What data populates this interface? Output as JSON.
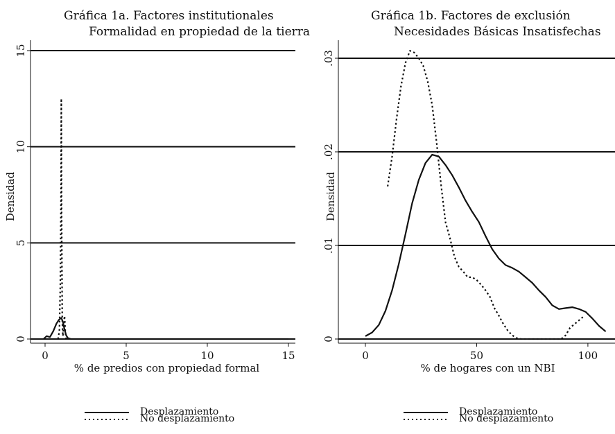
{
  "chart_data": [
    {
      "type": "line",
      "title": "Gráfica 1a. Factores institutionales",
      "subtitle": "Formalidad en propiedad de la tierra",
      "xlabel": "% de predios con propiedad formal",
      "ylabel": "Densidad",
      "xlim": [
        0,
        15
      ],
      "ylim": [
        0,
        15
      ],
      "xticks": [
        0,
        5,
        10,
        15
      ],
      "xtick_labels": [
        "0",
        "5",
        "10",
        "15"
      ],
      "yticks": [
        0,
        5,
        10,
        15
      ],
      "ytick_labels": [
        "0",
        "5",
        "10",
        "15"
      ],
      "grid": "horizontal",
      "legend_position": "bottom",
      "series": [
        {
          "name": "Desplazamiento",
          "style": "solid",
          "color": "#111111",
          "x": [
            -0.1,
            0.1,
            0.3,
            0.5,
            0.7,
            0.85,
            1.0,
            1.1,
            1.2,
            1.3,
            1.4,
            1.6,
            2,
            4,
            8,
            12,
            15
          ],
          "y": [
            0,
            0.15,
            0.1,
            0.4,
            0.8,
            1.0,
            1.1,
            0.9,
            0.5,
            0.2,
            0.05,
            0,
            0,
            0,
            0,
            0,
            0
          ]
        },
        {
          "name": "No desplazamiento",
          "style": "dotted",
          "color": "#111111",
          "x": [
            0.8,
            0.88,
            0.94,
            0.98,
            1.0,
            1.02,
            1.06,
            1.1,
            1.15,
            1.2,
            1.25,
            1.3
          ],
          "y": [
            0,
            0.4,
            2.8,
            7.0,
            12.5,
            6.5,
            1.0,
            0.15,
            0.8,
            1.2,
            0.3,
            0
          ]
        }
      ]
    },
    {
      "type": "line",
      "title": "Gráfica 1b. Factores de exclusión",
      "subtitle": "Necesidades Básicas Insatisfechas",
      "xlabel": "% de hogares con un NBI",
      "ylabel": "Densidad",
      "xlim": [
        0,
        110
      ],
      "ylim": [
        0,
        0.03
      ],
      "xticks": [
        0,
        50,
        100
      ],
      "xtick_labels": [
        "0",
        "50",
        "100"
      ],
      "yticks": [
        0,
        0.01,
        0.02,
        0.03
      ],
      "ytick_labels": [
        "0",
        ".01",
        ".02",
        ".03"
      ],
      "grid": "horizontal",
      "legend_position": "bottom",
      "series": [
        {
          "name": "Desplazamiento",
          "style": "solid",
          "color": "#111111",
          "x": [
            0,
            3,
            6,
            9,
            12,
            15,
            18,
            21,
            24,
            27,
            30,
            33,
            36,
            39,
            42,
            45,
            48,
            51,
            54,
            57,
            60,
            63,
            66,
            69,
            72,
            75,
            78,
            81,
            84,
            87,
            90,
            93,
            96,
            99,
            102,
            105,
            108
          ],
          "y": [
            0.0003,
            0.0007,
            0.0015,
            0.003,
            0.0052,
            0.008,
            0.0112,
            0.0145,
            0.017,
            0.0188,
            0.0197,
            0.0195,
            0.0186,
            0.0175,
            0.0162,
            0.0148,
            0.0136,
            0.0125,
            0.011,
            0.0096,
            0.0086,
            0.0079,
            0.0076,
            0.0072,
            0.0066,
            0.006,
            0.0052,
            0.0045,
            0.0036,
            0.0032,
            0.0033,
            0.0034,
            0.0032,
            0.0029,
            0.0022,
            0.0014,
            0.0008
          ]
        },
        {
          "name": "No desplazamiento",
          "style": "dotted",
          "color": "#111111",
          "x": [
            10,
            12,
            14,
            16,
            18,
            20,
            22,
            24,
            26,
            28,
            30,
            32,
            34,
            36,
            38,
            40,
            42,
            44,
            46,
            48,
            50,
            52,
            54,
            56,
            58,
            60,
            62,
            64,
            66,
            68,
            70,
            75,
            80,
            85,
            88,
            90,
            92,
            95,
            98
          ],
          "y": [
            0.0163,
            0.0195,
            0.0235,
            0.027,
            0.0295,
            0.0308,
            0.0306,
            0.03,
            0.0292,
            0.0275,
            0.025,
            0.021,
            0.0165,
            0.0125,
            0.0108,
            0.0088,
            0.0077,
            0.0072,
            0.0066,
            0.0066,
            0.0063,
            0.0058,
            0.0052,
            0.0045,
            0.0033,
            0.0025,
            0.0016,
            0.0009,
            0.0004,
            0.0001,
            0,
            0,
            0,
            0,
            0,
            0.0004,
            0.0012,
            0.0018,
            0.0024
          ]
        }
      ]
    }
  ]
}
